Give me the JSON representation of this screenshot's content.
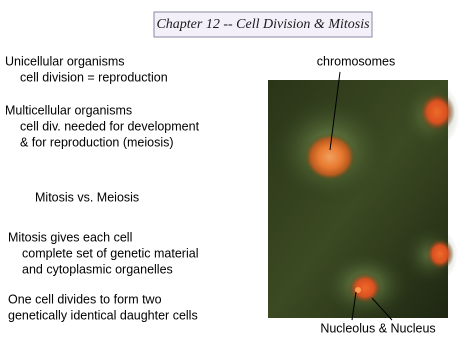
{
  "slide": {
    "title": "Chapter 12 -- Cell Division & Mitosis",
    "blocks": [
      {
        "lines": [
          "Unicellular organisms",
          "cell division = reproduction"
        ]
      },
      {
        "lines": [
          "Multicellular organisms",
          "cell div. needed for development",
          "& for reproduction (meiosis)"
        ]
      },
      {
        "lines": [
          "Mitosis vs. Meiosis"
        ]
      },
      {
        "lines": [
          "Mitosis gives each cell",
          "complete set of genetic material",
          "and cytoplasmic organelles"
        ]
      },
      {
        "lines": [
          "One cell divides to form two",
          "genetically identical daughter cells"
        ]
      }
    ],
    "figure": {
      "top_label": "chromosomes",
      "bottom_label": "Nucleolus & Nucleus"
    }
  }
}
